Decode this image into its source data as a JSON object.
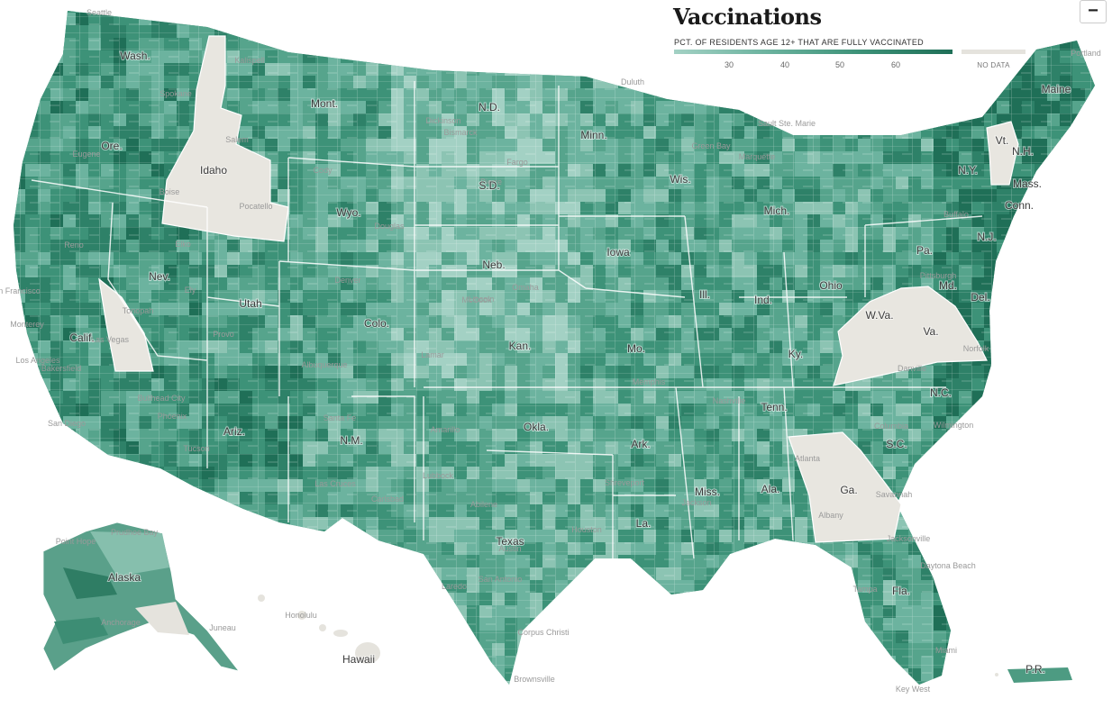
{
  "legend": {
    "title": "Vaccinations",
    "subtitle": "PCT. OF RESIDENTS AGE 12+ THAT ARE FULLY VACCINATED",
    "ticks": [
      "30",
      "40",
      "50",
      "60"
    ],
    "nodata_label": "NO DATA",
    "ramp_colors": [
      "#a3d1c4",
      "#6cb39f",
      "#3d9278",
      "#1f6f57"
    ],
    "nodata_color": "#e5e3dd"
  },
  "zoom": {
    "label": "−"
  },
  "map": {
    "state_labels": [
      "Wash.",
      "Ore.",
      "Idaho",
      "Mont.",
      "N.D.",
      "Minn.",
      "Wis.",
      "Mich.",
      "N.Y.",
      "Vt.",
      "N.H.",
      "Maine",
      "Mass.",
      "Conn.",
      "N.J.",
      "Pa.",
      "Del.",
      "Md.",
      "W.Va.",
      "Va.",
      "Ohio",
      "Ind.",
      "Ill.",
      "Iowa",
      "Neb.",
      "S.D.",
      "Wyo.",
      "Nev.",
      "Calif.",
      "Utah",
      "Colo.",
      "Kan.",
      "Mo.",
      "Ky.",
      "Tenn.",
      "N.C.",
      "S.C.",
      "Ga.",
      "Ala.",
      "Miss.",
      "Ark.",
      "La.",
      "Okla.",
      "Texas",
      "N.M.",
      "Ariz.",
      "Fla.",
      "Alaska",
      "Hawaii",
      "P.R."
    ],
    "city_labels": [
      "Seattle",
      "Spokane",
      "Kalispell",
      "Salem",
      "Eugene",
      "Boise",
      "Pocatello",
      "Elko",
      "Reno",
      "Ely",
      "Tonopah",
      "Provo",
      "Cody",
      "Douglas",
      "Bismarck",
      "Dickinson",
      "Fargo",
      "Duluth",
      "Green Bay",
      "Sault Ste. Marie",
      "Marquette",
      "Pierre",
      "Omaha",
      "Lincoln",
      "McCook",
      "Lamar",
      "Denver",
      "Albuquerque",
      "Santa Fe",
      "Las Cruces",
      "Carlsbad",
      "Amarillo",
      "Lubbock",
      "Abilene",
      "Austin",
      "San Antonio",
      "Corpus Christi",
      "Brownsville",
      "Houston",
      "Laredo",
      "Shreveport",
      "Jackson",
      "Memphis",
      "Nashville",
      "Atlanta",
      "Albany",
      "Savannah",
      "Jacksonville",
      "Daytona Beach",
      "Tampa",
      "Miami",
      "Key West",
      "Norfolk",
      "Danville",
      "Wilmington",
      "Columbia",
      "Pittsburgh",
      "Buffalo",
      "Portland",
      "Los Angeles",
      "San Diego",
      "San Francisco",
      "Monterey",
      "Bakersfield",
      "Las Vegas",
      "Bullhead City",
      "Phoenix",
      "Tucson",
      "Prudhoe Bay",
      "Point Hope",
      "Anchorage",
      "Juneau",
      "Honolulu"
    ]
  }
}
